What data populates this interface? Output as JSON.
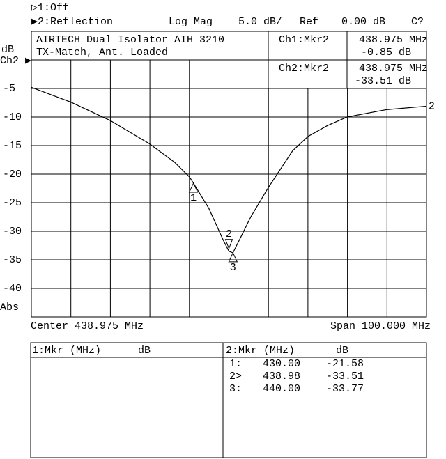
{
  "header": {
    "channel1": "▷1:Off",
    "channel2": "▶2:Reflection",
    "format": "Log Mag",
    "scale": "5.0 dB/",
    "ref_label": "Ref",
    "ref_value": "0.00 dB",
    "cal": "C?"
  },
  "chart_data": {
    "type": "line",
    "title": "AIRTECH Dual Isolator AIH 3210",
    "subtitle": "TX-Match, Ant. Loaded",
    "y_unit": "dB",
    "channel_label": "Ch2 ▶",
    "y_scale_label": "Abs",
    "center_label": "Center 438.975 MHz",
    "span_label": "Span 100.000 MHz",
    "xlim": [
      388.975,
      488.975
    ],
    "ylim": [
      -45,
      5
    ],
    "yticks": [
      -5,
      -10,
      -15,
      -20,
      -25,
      -30,
      -35,
      -40
    ],
    "grid": true,
    "series": [
      {
        "name": "2",
        "color": "#000000",
        "x": [
          388.975,
          399,
          408.9,
          418.9,
          425.2,
          429,
          430,
          433.9,
          437.5,
          438.98,
          440,
          442,
          444.5,
          448.9,
          455.1,
          459,
          463.9,
          468.9,
          478.9,
          488.975
        ],
        "values": [
          -4.8,
          -7.4,
          -10.6,
          -14.7,
          -17.9,
          -20.5,
          -21.58,
          -26,
          -31.5,
          -33.51,
          -33.77,
          -31,
          -27.5,
          -22.4,
          -15.9,
          -13.4,
          -11.5,
          -10,
          -8.7,
          -8.1
        ]
      }
    ],
    "markers": {
      "labels": [
        "1",
        "2",
        "3"
      ],
      "row_labels": [
        "1:",
        "2>",
        "3:"
      ],
      "x": [
        430,
        438.98,
        440
      ],
      "x_labels": [
        "430.00",
        "438.98",
        "440.00"
      ],
      "values": [
        -21.58,
        -33.51,
        -33.77
      ],
      "value_labels": [
        "-21.58",
        "-33.51",
        "-33.77"
      ]
    },
    "readouts": [
      {
        "channel": "Ch1:Mkr2",
        "frequency": "438.975 MHz",
        "value": "-0.85 dB"
      },
      {
        "channel": "Ch2:Mkr2",
        "frequency": "438.975 MHz",
        "value": "-33.51 dB"
      }
    ]
  },
  "marker_table": {
    "panels": [
      {
        "header": "1:Mkr (MHz)",
        "unit": "dB"
      },
      {
        "header": "2:Mkr (MHz)",
        "unit": "dB"
      }
    ]
  }
}
